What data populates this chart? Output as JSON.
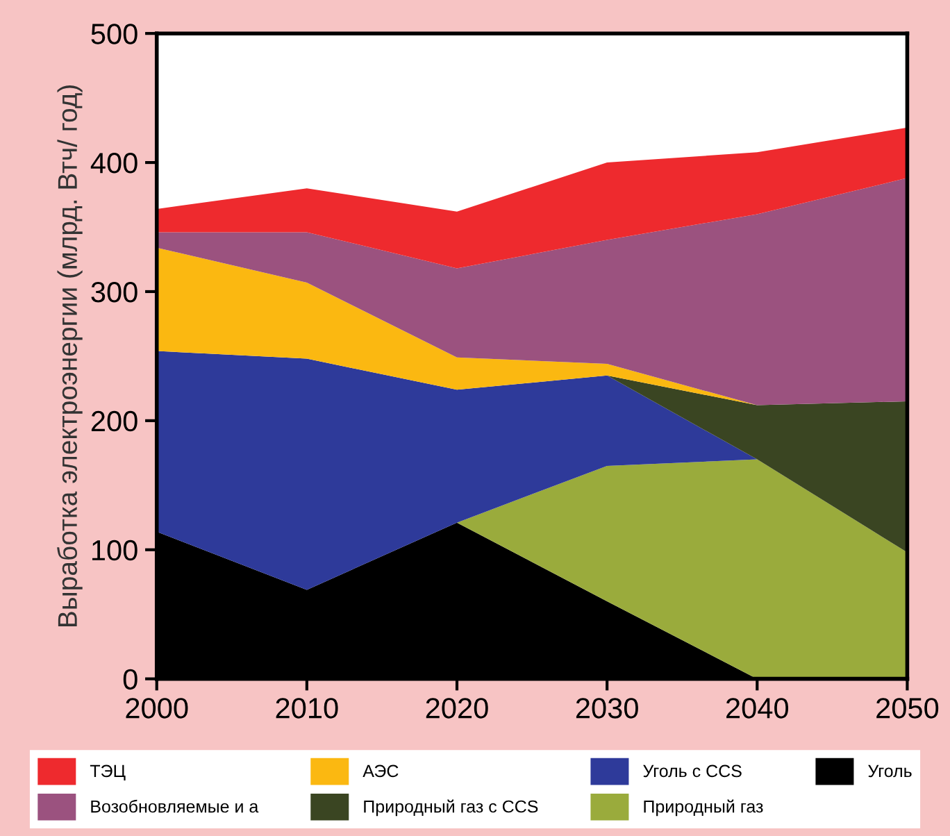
{
  "chart_data": {
    "type": "area",
    "stacked": true,
    "ylabel": "Выработка электроэнергии (млрд. Втч/ год)",
    "x": [
      2000,
      2010,
      2020,
      2030,
      2040,
      2050
    ],
    "series": [
      {
        "name": "Уголь",
        "color": "#000000",
        "values": [
          114,
          69,
          121,
          60,
          0,
          0
        ]
      },
      {
        "name": "Природный газ",
        "color": "#9aab3c",
        "values": [
          0,
          0,
          0,
          105,
          170,
          98
        ]
      },
      {
        "name": "Уголь с CCS",
        "color": "#2e3a9a",
        "values": [
          140,
          179,
          103,
          70,
          0,
          0
        ]
      },
      {
        "name": "Природный газ с CCS",
        "color": "#3a4522",
        "values": [
          0,
          0,
          0,
          0,
          42,
          117
        ]
      },
      {
        "name": "АЭС",
        "color": "#fbb811",
        "values": [
          80,
          59,
          25,
          9,
          0,
          0
        ]
      },
      {
        "name": "Возобновляемые и а",
        "color": "#9b527f",
        "values": [
          12,
          39,
          69,
          96,
          148,
          173
        ]
      },
      {
        "name": "ТЭЦ",
        "color": "#ee2a2e",
        "values": [
          18,
          34,
          44,
          60,
          48,
          39
        ]
      }
    ],
    "xlim": [
      2000,
      2050
    ],
    "xticks": [
      2000,
      2010,
      2020,
      2030,
      2040,
      2050
    ],
    "ylim": [
      0,
      500
    ],
    "yticks": [
      0,
      100,
      200,
      300,
      400,
      500
    ],
    "grid": false,
    "legend": "bottom"
  }
}
